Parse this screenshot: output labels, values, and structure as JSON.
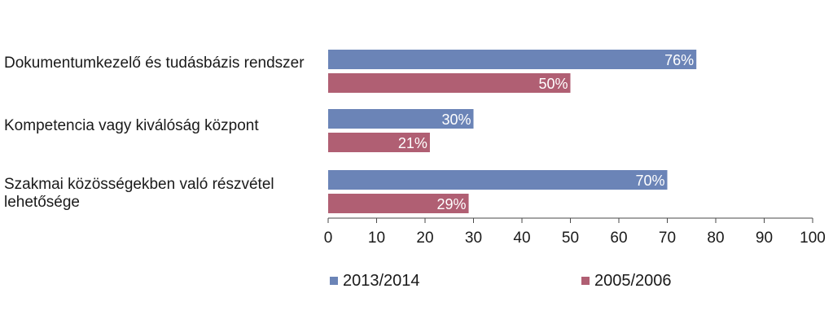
{
  "chart_data": {
    "type": "bar",
    "orientation": "horizontal",
    "title": "",
    "xlabel": "",
    "ylabel": "",
    "categories": [
      "Dokumentumkezelő és tudásbázis rendszer",
      "Kompetencia vagy kiválóság központ",
      "Szakmai közösségekben való részvétel lehetősége"
    ],
    "series": [
      {
        "name": "2013/2014",
        "color": "#6b84b7",
        "values": [
          76,
          30,
          70
        ],
        "labels": [
          "76%",
          "30%",
          "70%"
        ]
      },
      {
        "name": "2005/2006",
        "color": "#b05f73",
        "values": [
          50,
          21,
          29
        ],
        "labels": [
          "50%",
          "21%",
          "29%"
        ]
      }
    ],
    "xlim": [
      0,
      100
    ],
    "xticks": [
      "0",
      "10",
      "20",
      "30",
      "40",
      "50",
      "60",
      "70",
      "80",
      "90",
      "100"
    ],
    "grid": false,
    "legend_position": "bottom"
  }
}
